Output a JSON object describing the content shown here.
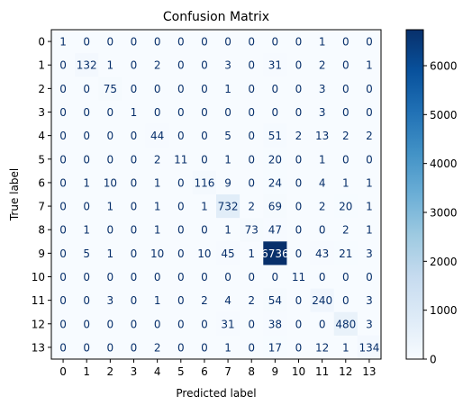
{
  "chart_data": {
    "type": "heatmap",
    "title": "Confusion Matrix",
    "xlabel": "Predicted label",
    "ylabel": "True label",
    "x_labels": [
      "0",
      "1",
      "2",
      "3",
      "4",
      "5",
      "6",
      "7",
      "8",
      "9",
      "10",
      "11",
      "12",
      "13"
    ],
    "y_labels": [
      "0",
      "1",
      "2",
      "3",
      "4",
      "5",
      "6",
      "7",
      "8",
      "9",
      "10",
      "11",
      "12",
      "13"
    ],
    "matrix": [
      [
        1,
        0,
        0,
        0,
        0,
        0,
        0,
        0,
        0,
        0,
        0,
        1,
        0,
        0
      ],
      [
        0,
        132,
        1,
        0,
        2,
        0,
        0,
        3,
        0,
        31,
        0,
        2,
        0,
        1
      ],
      [
        0,
        0,
        75,
        0,
        0,
        0,
        0,
        1,
        0,
        0,
        0,
        3,
        0,
        0
      ],
      [
        0,
        0,
        0,
        1,
        0,
        0,
        0,
        0,
        0,
        0,
        0,
        3,
        0,
        0
      ],
      [
        0,
        0,
        0,
        0,
        44,
        0,
        0,
        5,
        0,
        51,
        2,
        13,
        2,
        2
      ],
      [
        0,
        0,
        0,
        0,
        2,
        11,
        0,
        1,
        0,
        20,
        0,
        1,
        0,
        0
      ],
      [
        0,
        1,
        10,
        0,
        1,
        0,
        116,
        9,
        0,
        24,
        0,
        4,
        1,
        1
      ],
      [
        0,
        0,
        1,
        0,
        1,
        0,
        1,
        732,
        2,
        69,
        0,
        2,
        20,
        1
      ],
      [
        0,
        1,
        0,
        0,
        1,
        0,
        0,
        1,
        73,
        47,
        0,
        0,
        2,
        1
      ],
      [
        0,
        5,
        1,
        0,
        10,
        0,
        10,
        45,
        1,
        6736,
        0,
        43,
        21,
        3
      ],
      [
        0,
        0,
        0,
        0,
        0,
        0,
        0,
        0,
        0,
        0,
        11,
        0,
        0,
        0
      ],
      [
        0,
        0,
        3,
        0,
        1,
        0,
        2,
        4,
        2,
        54,
        0,
        240,
        0,
        3
      ],
      [
        0,
        0,
        0,
        0,
        0,
        0,
        0,
        31,
        0,
        38,
        0,
        0,
        480,
        3
      ],
      [
        0,
        0,
        0,
        0,
        2,
        0,
        0,
        1,
        0,
        17,
        0,
        12,
        1,
        134
      ]
    ],
    "colormap": "Blues",
    "color_range": [
      0,
      6736
    ],
    "colorbar_ticks": [
      "0",
      "1000",
      "2000",
      "3000",
      "4000",
      "5000",
      "6000"
    ],
    "colorbar_values": [
      0,
      1000,
      2000,
      3000,
      4000,
      5000,
      6000
    ]
  }
}
